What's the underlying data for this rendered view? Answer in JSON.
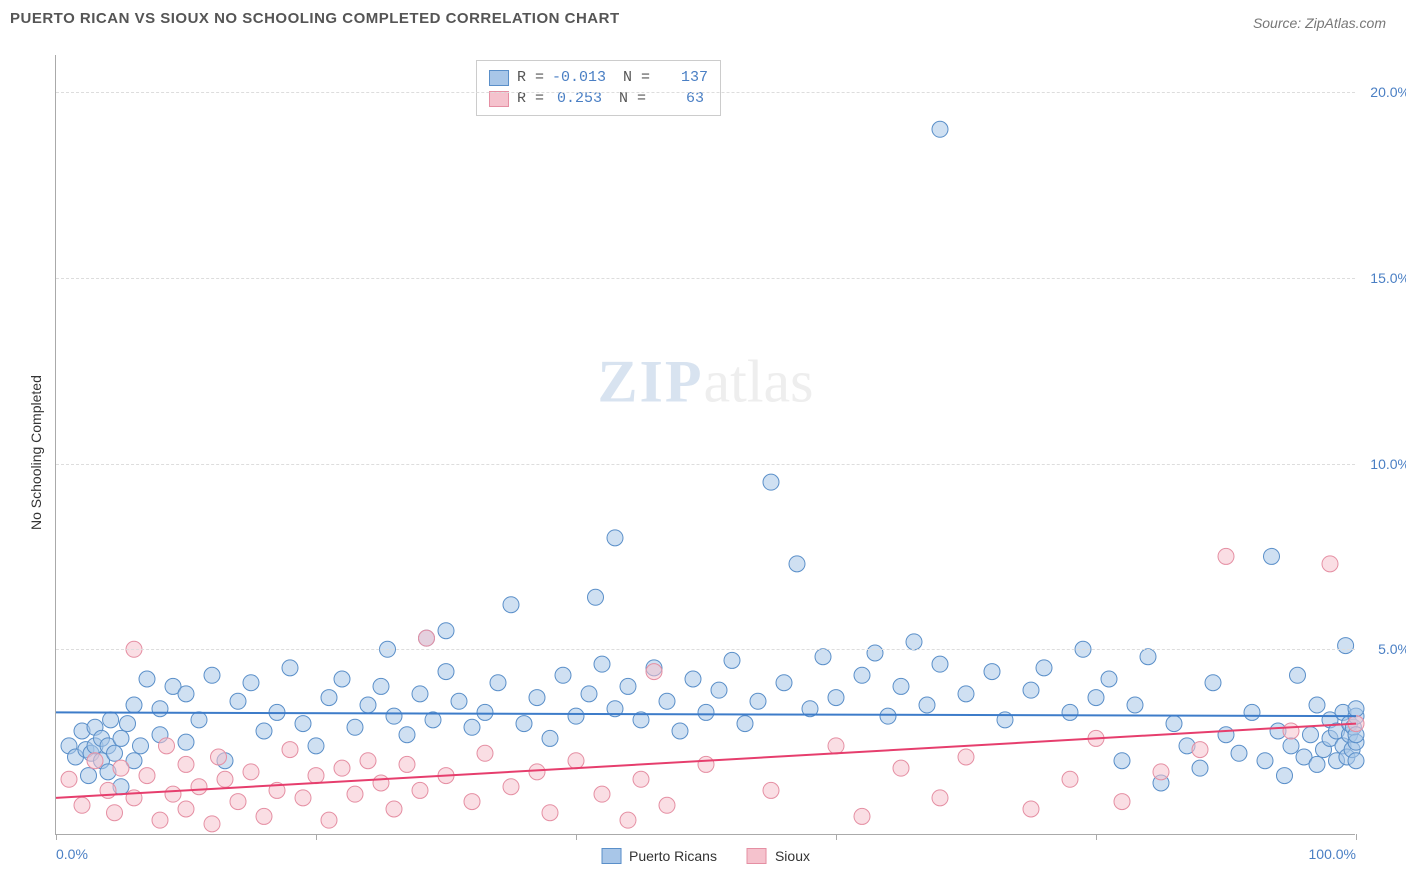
{
  "chart": {
    "type": "scatter",
    "title": "PUERTO RICAN VS SIOUX NO SCHOOLING COMPLETED CORRELATION CHART",
    "source_label": "Source: ZipAtlas.com",
    "y_axis_label": "No Schooling Completed",
    "watermark_zip": "ZIP",
    "watermark_atlas": "atlas",
    "xlim": [
      0,
      100
    ],
    "ylim": [
      0,
      21
    ],
    "x_ticks": [
      0,
      20,
      40,
      60,
      80,
      100
    ],
    "x_tick_labels": [
      "0.0%",
      "",
      "",
      "",
      "",
      "100.0%"
    ],
    "y_ticks": [
      5,
      10,
      15,
      20
    ],
    "y_tick_labels": [
      "5.0%",
      "10.0%",
      "15.0%",
      "20.0%"
    ],
    "background_color": "#ffffff",
    "grid_color": "#dddddd",
    "axis_color": "#aaaaaa",
    "label_color": "#4a7fc4",
    "title_color": "#555555",
    "title_fontsize": 15,
    "tick_fontsize": 14,
    "marker_radius": 8,
    "marker_opacity": 0.55,
    "trend_line_width": 2,
    "series": [
      {
        "name": "Puerto Ricans",
        "key": "puerto_ricans",
        "fill_color": "#a8c6e8",
        "stroke_color": "#5a8fc9",
        "trend_color": "#3d7cc9",
        "R_label": "R =",
        "R_value": "-0.013",
        "N_label": "N =",
        "N_value": "137",
        "trend": {
          "x1": 0,
          "y1": 3.3,
          "x2": 100,
          "y2": 3.2
        },
        "points": [
          [
            1,
            2.4
          ],
          [
            1.5,
            2.1
          ],
          [
            2,
            2.8
          ],
          [
            2.3,
            2.3
          ],
          [
            2.5,
            1.6
          ],
          [
            2.7,
            2.2
          ],
          [
            3,
            2.9
          ],
          [
            3,
            2.4
          ],
          [
            3.5,
            2.0
          ],
          [
            3.5,
            2.6
          ],
          [
            4,
            1.7
          ],
          [
            4,
            2.4
          ],
          [
            4.2,
            3.1
          ],
          [
            4.5,
            2.2
          ],
          [
            5,
            1.3
          ],
          [
            5,
            2.6
          ],
          [
            5.5,
            3.0
          ],
          [
            6,
            2.0
          ],
          [
            6,
            3.5
          ],
          [
            6.5,
            2.4
          ],
          [
            7,
            4.2
          ],
          [
            8,
            2.7
          ],
          [
            8,
            3.4
          ],
          [
            9,
            4.0
          ],
          [
            10,
            2.5
          ],
          [
            10,
            3.8
          ],
          [
            11,
            3.1
          ],
          [
            12,
            4.3
          ],
          [
            13,
            2.0
          ],
          [
            14,
            3.6
          ],
          [
            15,
            4.1
          ],
          [
            16,
            2.8
          ],
          [
            17,
            3.3
          ],
          [
            18,
            4.5
          ],
          [
            19,
            3.0
          ],
          [
            20,
            2.4
          ],
          [
            21,
            3.7
          ],
          [
            22,
            4.2
          ],
          [
            23,
            2.9
          ],
          [
            24,
            3.5
          ],
          [
            25,
            4.0
          ],
          [
            25.5,
            5.0
          ],
          [
            26,
            3.2
          ],
          [
            27,
            2.7
          ],
          [
            28,
            3.8
          ],
          [
            28.5,
            5.3
          ],
          [
            29,
            3.1
          ],
          [
            30,
            4.4
          ],
          [
            30,
            5.5
          ],
          [
            31,
            3.6
          ],
          [
            32,
            2.9
          ],
          [
            33,
            3.3
          ],
          [
            34,
            4.1
          ],
          [
            35,
            6.2
          ],
          [
            36,
            3.0
          ],
          [
            37,
            3.7
          ],
          [
            38,
            2.6
          ],
          [
            39,
            4.3
          ],
          [
            40,
            3.2
          ],
          [
            41,
            3.8
          ],
          [
            41.5,
            6.4
          ],
          [
            42,
            4.6
          ],
          [
            43,
            3.4
          ],
          [
            43,
            8.0
          ],
          [
            44,
            4.0
          ],
          [
            45,
            3.1
          ],
          [
            46,
            4.5
          ],
          [
            47,
            3.6
          ],
          [
            48,
            2.8
          ],
          [
            49,
            4.2
          ],
          [
            50,
            3.3
          ],
          [
            51,
            3.9
          ],
          [
            52,
            4.7
          ],
          [
            53,
            3.0
          ],
          [
            54,
            3.6
          ],
          [
            55,
            9.5
          ],
          [
            56,
            4.1
          ],
          [
            57,
            7.3
          ],
          [
            58,
            3.4
          ],
          [
            59,
            4.8
          ],
          [
            60,
            3.7
          ],
          [
            62,
            4.3
          ],
          [
            63,
            4.9
          ],
          [
            64,
            3.2
          ],
          [
            65,
            4.0
          ],
          [
            66,
            5.2
          ],
          [
            67,
            3.5
          ],
          [
            68,
            4.6
          ],
          [
            68,
            19.0
          ],
          [
            70,
            3.8
          ],
          [
            72,
            4.4
          ],
          [
            73,
            3.1
          ],
          [
            75,
            3.9
          ],
          [
            76,
            4.5
          ],
          [
            78,
            3.3
          ],
          [
            79,
            5.0
          ],
          [
            80,
            3.7
          ],
          [
            81,
            4.2
          ],
          [
            82,
            2.0
          ],
          [
            83,
            3.5
          ],
          [
            84,
            4.8
          ],
          [
            85,
            1.4
          ],
          [
            86,
            3.0
          ],
          [
            87,
            2.4
          ],
          [
            88,
            1.8
          ],
          [
            89,
            4.1
          ],
          [
            90,
            2.7
          ],
          [
            91,
            2.2
          ],
          [
            92,
            3.3
          ],
          [
            93,
            2.0
          ],
          [
            93.5,
            7.5
          ],
          [
            94,
            2.8
          ],
          [
            94.5,
            1.6
          ],
          [
            95,
            2.4
          ],
          [
            95.5,
            4.3
          ],
          [
            96,
            2.1
          ],
          [
            96.5,
            2.7
          ],
          [
            97,
            1.9
          ],
          [
            97,
            3.5
          ],
          [
            97.5,
            2.3
          ],
          [
            98,
            2.6
          ],
          [
            98,
            3.1
          ],
          [
            98.5,
            2.0
          ],
          [
            98.5,
            2.8
          ],
          [
            99,
            2.4
          ],
          [
            99,
            3.3
          ],
          [
            99.2,
            5.1
          ],
          [
            99.3,
            2.1
          ],
          [
            99.5,
            2.7
          ],
          [
            99.5,
            3.0
          ],
          [
            99.7,
            2.3
          ],
          [
            99.8,
            2.9
          ],
          [
            100,
            2.5
          ],
          [
            100,
            3.2
          ],
          [
            100,
            2.0
          ],
          [
            100,
            2.7
          ],
          [
            100,
            3.4
          ]
        ]
      },
      {
        "name": "Sioux",
        "key": "sioux",
        "fill_color": "#f5c2cd",
        "stroke_color": "#e58fa3",
        "trend_color": "#e63e6d",
        "R_label": "R =",
        "R_value": "0.253",
        "N_label": "N =",
        "N_value": "63",
        "trend": {
          "x1": 0,
          "y1": 1.0,
          "x2": 100,
          "y2": 3.0
        },
        "points": [
          [
            1,
            1.5
          ],
          [
            2,
            0.8
          ],
          [
            3,
            2.0
          ],
          [
            4,
            1.2
          ],
          [
            4.5,
            0.6
          ],
          [
            5,
            1.8
          ],
          [
            6,
            1.0
          ],
          [
            6,
            5.0
          ],
          [
            7,
            1.6
          ],
          [
            8,
            0.4
          ],
          [
            8.5,
            2.4
          ],
          [
            9,
            1.1
          ],
          [
            10,
            0.7
          ],
          [
            10,
            1.9
          ],
          [
            11,
            1.3
          ],
          [
            12,
            0.3
          ],
          [
            12.5,
            2.1
          ],
          [
            13,
            1.5
          ],
          [
            14,
            0.9
          ],
          [
            15,
            1.7
          ],
          [
            16,
            0.5
          ],
          [
            17,
            1.2
          ],
          [
            18,
            2.3
          ],
          [
            19,
            1.0
          ],
          [
            20,
            1.6
          ],
          [
            21,
            0.4
          ],
          [
            22,
            1.8
          ],
          [
            23,
            1.1
          ],
          [
            24,
            2.0
          ],
          [
            25,
            1.4
          ],
          [
            26,
            0.7
          ],
          [
            27,
            1.9
          ],
          [
            28,
            1.2
          ],
          [
            28.5,
            5.3
          ],
          [
            30,
            1.6
          ],
          [
            32,
            0.9
          ],
          [
            33,
            2.2
          ],
          [
            35,
            1.3
          ],
          [
            37,
            1.7
          ],
          [
            38,
            0.6
          ],
          [
            40,
            2.0
          ],
          [
            42,
            1.1
          ],
          [
            44,
            0.4
          ],
          [
            45,
            1.5
          ],
          [
            46,
            4.4
          ],
          [
            47,
            0.8
          ],
          [
            50,
            1.9
          ],
          [
            55,
            1.2
          ],
          [
            60,
            2.4
          ],
          [
            62,
            0.5
          ],
          [
            65,
            1.8
          ],
          [
            68,
            1.0
          ],
          [
            70,
            2.1
          ],
          [
            75,
            0.7
          ],
          [
            78,
            1.5
          ],
          [
            80,
            2.6
          ],
          [
            82,
            0.9
          ],
          [
            85,
            1.7
          ],
          [
            88,
            2.3
          ],
          [
            90,
            7.5
          ],
          [
            95,
            2.8
          ],
          [
            98,
            7.3
          ],
          [
            100,
            3.0
          ]
        ]
      }
    ],
    "bottom_legend": [
      {
        "label": "Puerto Ricans",
        "fill": "#a8c6e8",
        "stroke": "#5a8fc9"
      },
      {
        "label": "Sioux",
        "fill": "#f5c2cd",
        "stroke": "#e58fa3"
      }
    ]
  }
}
